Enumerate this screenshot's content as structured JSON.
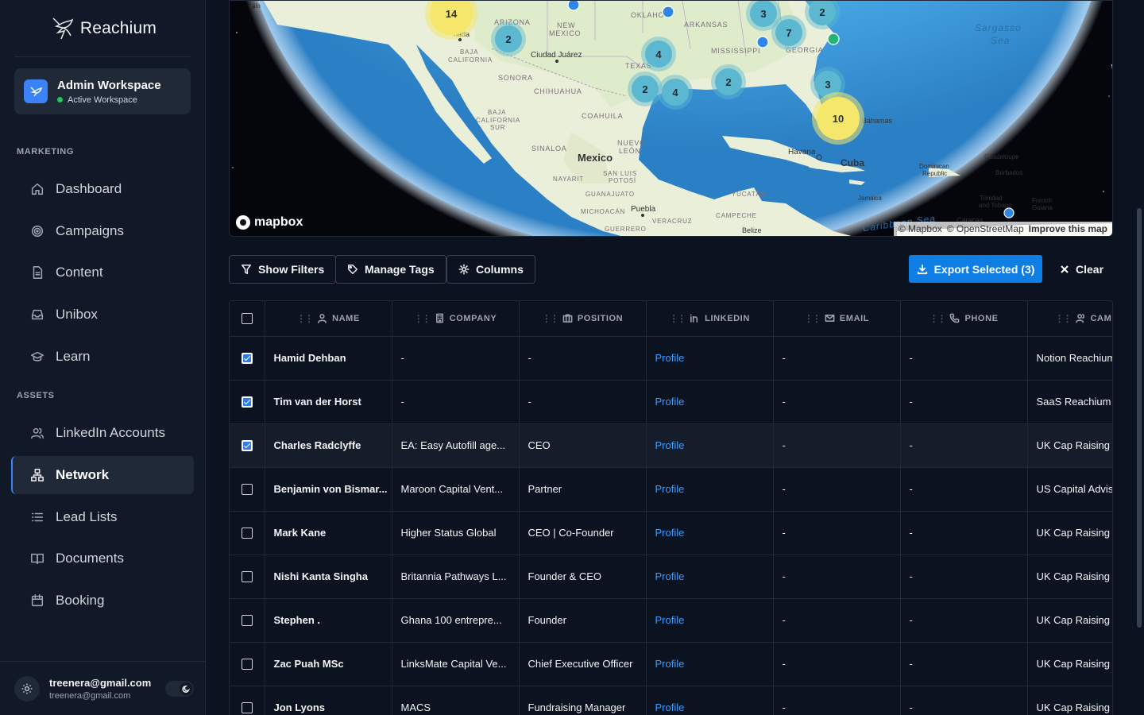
{
  "brand": {
    "name": "Reachium"
  },
  "workspace": {
    "title": "Admin Workspace",
    "status": "Active Workspace"
  },
  "sidebar": {
    "sections": [
      {
        "label": "MARKETING"
      },
      {
        "label": "ASSETS"
      }
    ],
    "marketing": [
      {
        "label": "Dashboard",
        "icon": "home-icon"
      },
      {
        "label": "Campaigns",
        "icon": "target-icon"
      },
      {
        "label": "Content",
        "icon": "document-icon"
      },
      {
        "label": "Unibox",
        "icon": "inbox-icon"
      },
      {
        "label": "Learn",
        "icon": "graduation-cap-icon"
      }
    ],
    "assets": [
      {
        "label": "LinkedIn Accounts",
        "icon": "users-icon"
      },
      {
        "label": "Network",
        "icon": "network-icon",
        "active": true
      },
      {
        "label": "Lead Lists",
        "icon": "list-icon"
      },
      {
        "label": "Documents",
        "icon": "book-icon"
      },
      {
        "label": "Booking",
        "icon": "calendar-icon"
      }
    ]
  },
  "user": {
    "email": "treenera@gmail.com",
    "sub": "treenera@gmail.com"
  },
  "map": {
    "logo": "mapbox",
    "attribution": [
      "© Mapbox",
      "© OpenStreetMap",
      "Improve this map"
    ],
    "labels": {
      "arizona": "ARIZONA",
      "new_mexico": "NEW\nMEXICO",
      "oklahoma": "OKLAHO",
      "arkansas": "ARKANSAS",
      "texas": "TEXAS",
      "mississippi": "MISSISSIPPI",
      "georgia": "GEORGIA",
      "baja_california": "BAJA\nCALIFORNIA",
      "sonora": "SONORA",
      "chihuahua": "CHIHUAHUA",
      "coahuila": "COAHUILA",
      "baja_california_sur": "BAJA\nCALIFORNIA\nSUR",
      "sinaloa": "SINALOA",
      "nuevo_leon": "NUEVO\nLEÓN",
      "mexico": "Mexico",
      "san_luis_potosi": "SAN LUIS\nPOTOSÍ",
      "nayarit": "NAYARIT",
      "guanajuato": "GUANAJUATO",
      "michoacan": "MICHOACÁN",
      "puebla": "Puebla",
      "veracruz": "VERACRUZ",
      "guerrero": "GUERRERO",
      "yucatan": "YUCATÁN",
      "campeche": "CAMPECHE",
      "belize": "Belize",
      "havana": "Havana",
      "cuba": "Cuba",
      "bahamas": "Bahamas",
      "dominican": "Dominican\nRepublic",
      "guadeloupe": "Guadeloupe",
      "barbados": "Barbados",
      "jamaica": "Jamaica",
      "trinidad": "Trinidad\nand Tobago",
      "french_guiana": "French\nGuiana",
      "caracas": "Caracas",
      "caribbean": "Caribbean Sea",
      "sargasso": "Sargasso\nSea",
      "ciudad_juarez": "Ciudad Juárez",
      "hilo": "Hilo",
      "nada": "nada"
    },
    "clusters": [
      {
        "count": "14",
        "color": "#f4e76b",
        "kind": "large"
      },
      {
        "count": "2",
        "color": "#5bb8d0",
        "kind": "small"
      },
      {
        "count": "4",
        "color": "#5bb8d0",
        "kind": "small"
      },
      {
        "count": "2",
        "color": "#5bb8d0",
        "kind": "small"
      },
      {
        "count": "4",
        "color": "#5bb8d0",
        "kind": "small"
      },
      {
        "count": "2",
        "color": "#5bb8d0",
        "kind": "small"
      },
      {
        "count": "3",
        "color": "#5bb8d0",
        "kind": "small"
      },
      {
        "count": "7",
        "color": "#5bb8d0",
        "kind": "small"
      },
      {
        "count": "2",
        "color": "#5bb8d0",
        "kind": "small"
      },
      {
        "count": "3",
        "color": "#5bb8d0",
        "kind": "small"
      },
      {
        "count": "10",
        "color": "#f4e76b",
        "kind": "large"
      }
    ]
  },
  "toolbar": {
    "show_filters": "Show Filters",
    "manage_tags": "Manage Tags",
    "columns": "Columns",
    "export": "Export Selected (3)",
    "clear": "Clear"
  },
  "table": {
    "headers": [
      "NAME",
      "COMPANY",
      "POSITION",
      "LINKEDIN",
      "EMAIL",
      "PHONE",
      "CAMPA"
    ],
    "rows": [
      {
        "checked": true,
        "name": "Hamid Dehban",
        "company": "-",
        "position": "-",
        "linkedin": "Profile",
        "email": "-",
        "phone": "-",
        "campaign": "Notion Reachium"
      },
      {
        "checked": true,
        "name": "Tim van der Horst",
        "company": "-",
        "position": "-",
        "linkedin": "Profile",
        "email": "-",
        "phone": "-",
        "campaign": "SaaS Reachium"
      },
      {
        "checked": true,
        "name": "Charles Radclyffe",
        "company": "EA: Easy Autofill age...",
        "position": "CEO",
        "linkedin": "Profile",
        "email": "-",
        "phone": "-",
        "campaign": "UK Cap Raising",
        "highlight": true
      },
      {
        "checked": false,
        "name": "Benjamin von Bismar...",
        "company": "Maroon Capital Vent...",
        "position": "Partner",
        "linkedin": "Profile",
        "email": "-",
        "phone": "-",
        "campaign": "US Capital Advis"
      },
      {
        "checked": false,
        "name": "Mark Kane",
        "company": "Higher Status Global",
        "position": "CEO | Co-Founder",
        "linkedin": "Profile",
        "email": "-",
        "phone": "-",
        "campaign": "UK Cap Raising"
      },
      {
        "checked": false,
        "name": "Nishi Kanta Singha",
        "company": "Britannia Pathways L...",
        "position": "Founder & CEO",
        "linkedin": "Profile",
        "email": "-",
        "phone": "-",
        "campaign": "UK Cap Raising"
      },
      {
        "checked": false,
        "name": "Stephen .",
        "company": "Ghana 100 entrepre...",
        "position": "Founder",
        "linkedin": "Profile",
        "email": "-",
        "phone": "-",
        "campaign": "UK Cap Raising"
      },
      {
        "checked": false,
        "name": "Zac Puah MSc",
        "company": "LinksMate Capital Ve...",
        "position": "Chief Executive Officer",
        "linkedin": "Profile",
        "email": "-",
        "phone": "-",
        "campaign": "UK Cap Raising"
      },
      {
        "checked": false,
        "name": "Jon Lyons",
        "company": "MACS",
        "position": "Fundraising Manager",
        "linkedin": "Profile",
        "email": "-",
        "phone": "-",
        "campaign": "UK Cap Raising"
      }
    ]
  },
  "colors": {
    "accent": "#0e7ee4",
    "link": "#3b9eff",
    "bg": "#0b1220",
    "sidebar": "#111827"
  }
}
